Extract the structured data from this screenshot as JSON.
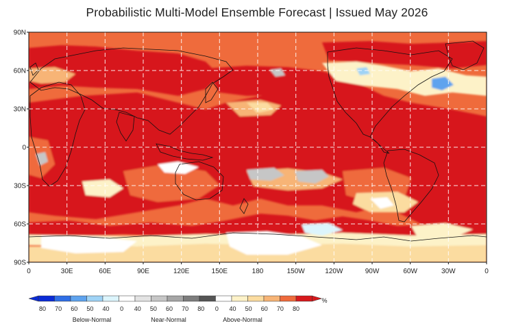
{
  "title": "Probabilistic Multi-Model Ensemble Forecast | Issued May 2026",
  "map": {
    "lat_ticks": [
      "90N",
      "60N",
      "30N",
      "0",
      "30S",
      "60S",
      "90S"
    ],
    "lon_ticks": [
      "0",
      "30E",
      "60E",
      "90E",
      "120E",
      "150E",
      "180",
      "150W",
      "120W",
      "90W",
      "60W",
      "30W",
      "0"
    ],
    "grid": true
  },
  "legend": {
    "unit": "%",
    "labels": [
      "80",
      "70",
      "60",
      "50",
      "40",
      "0",
      "40",
      "50",
      "60",
      "70",
      "80",
      "0",
      "40",
      "50",
      "60",
      "70",
      "80"
    ],
    "categories": [
      "Below-Normal",
      "Near-Normal",
      "Above-Normal"
    ],
    "colors": {
      "below": [
        "#0a2bd6",
        "#2f6ee6",
        "#5ea3ee",
        "#9fd3f6",
        "#dcf5fc"
      ],
      "neutral": "#ffffff",
      "near": [
        "#e3e3e3",
        "#c6c6c6",
        "#a6a6a6",
        "#7d7d7d",
        "#555555"
      ],
      "above": [
        "#fdf2c8",
        "#fbdca0",
        "#f7b476",
        "#ef6b3c",
        "#d7191c"
      ]
    }
  },
  "field_colors": {
    "above_80": "#d7191c",
    "above_70": "#ef6b3c",
    "above_60": "#f7b476",
    "above_50": "#fbdca0",
    "above_40": "#fdf2c8",
    "near_40": "#c6c6c6",
    "below_50": "#5ea3ee",
    "neutral": "#ffffff"
  }
}
